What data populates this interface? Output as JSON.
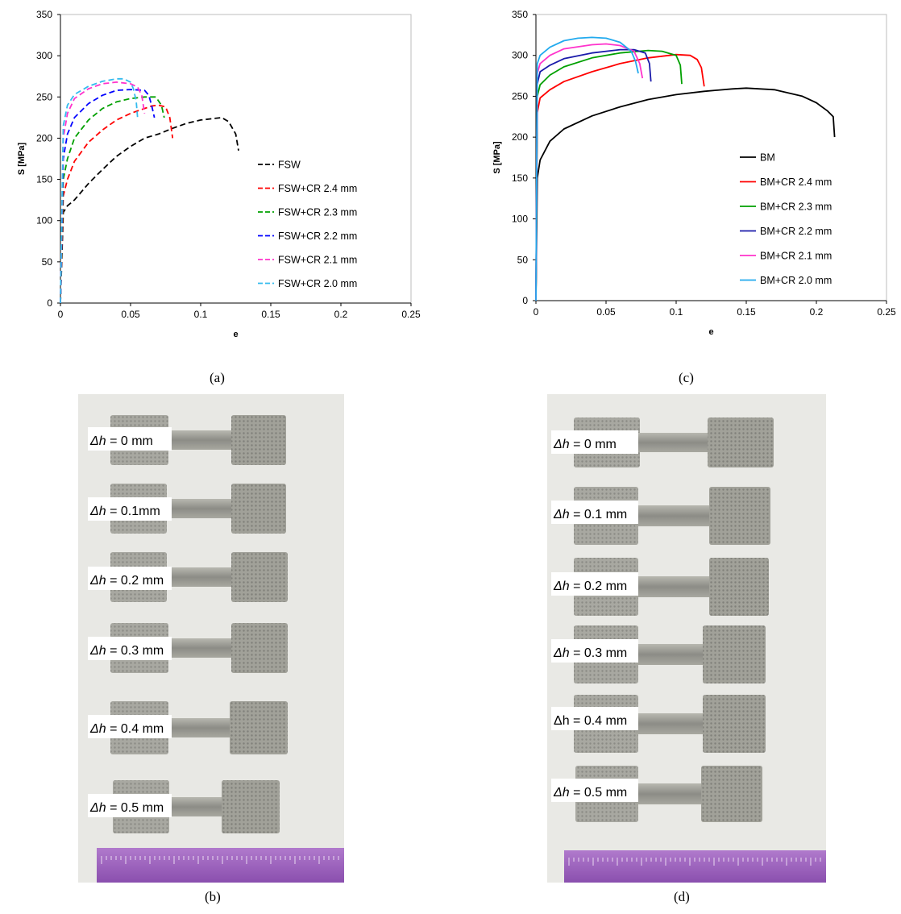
{
  "captions": {
    "a": "(a)",
    "b": "(b)",
    "c": "(c)",
    "d": "(d)"
  },
  "chart_data": [
    {
      "type": "line",
      "panel": "a",
      "xlabel": "e",
      "ylabel": "S [MPa]",
      "xlim": [
        0,
        0.25
      ],
      "ylim": [
        0,
        350
      ],
      "xticks": [
        "0",
        "0.05",
        "0.1",
        "0.15",
        "0.2",
        "0.25"
      ],
      "yticks": [
        "0",
        "50",
        "100",
        "150",
        "200",
        "250",
        "300",
        "350"
      ],
      "line_style": "dashed",
      "legend_position": "right",
      "series": [
        {
          "name": "FSW",
          "color": "#000000",
          "x": [
            0,
            0.002,
            0.005,
            0.01,
            0.02,
            0.03,
            0.04,
            0.05,
            0.06,
            0.07,
            0.08,
            0.09,
            0.1,
            0.11,
            0.115,
            0.12,
            0.125,
            0.127
          ],
          "y": [
            0,
            110,
            118,
            125,
            145,
            162,
            178,
            190,
            200,
            205,
            212,
            218,
            222,
            224,
            225,
            220,
            205,
            185
          ]
        },
        {
          "name": "FSW+CR 2.4 mm",
          "color": "#ff0000",
          "x": [
            0,
            0.002,
            0.005,
            0.01,
            0.02,
            0.03,
            0.04,
            0.05,
            0.06,
            0.065,
            0.07,
            0.075,
            0.078,
            0.08
          ],
          "y": [
            0,
            130,
            150,
            172,
            195,
            210,
            222,
            230,
            236,
            239,
            240,
            238,
            225,
            200
          ]
        },
        {
          "name": "FSW+CR 2.3 mm",
          "color": "#00a000",
          "x": [
            0,
            0.002,
            0.005,
            0.01,
            0.02,
            0.03,
            0.04,
            0.05,
            0.06,
            0.068,
            0.072,
            0.074
          ],
          "y": [
            0,
            150,
            175,
            200,
            222,
            236,
            244,
            248,
            250,
            250,
            240,
            225
          ]
        },
        {
          "name": "FSW+CR 2.2 mm",
          "color": "#0000ff",
          "x": [
            0,
            0.002,
            0.005,
            0.01,
            0.02,
            0.03,
            0.04,
            0.05,
            0.06,
            0.063,
            0.065,
            0.067
          ],
          "y": [
            0,
            175,
            205,
            225,
            242,
            252,
            258,
            259,
            258,
            252,
            240,
            225
          ]
        },
        {
          "name": "FSW+CR 2.1 mm",
          "color": "#ff33cc",
          "x": [
            0,
            0.002,
            0.005,
            0.01,
            0.02,
            0.03,
            0.04,
            0.05,
            0.055,
            0.058,
            0.06
          ],
          "y": [
            0,
            200,
            230,
            248,
            260,
            266,
            268,
            266,
            262,
            252,
            230
          ]
        },
        {
          "name": "FSW+CR 2.0 mm",
          "color": "#33bbee",
          "x": [
            0,
            0.002,
            0.005,
            0.01,
            0.02,
            0.03,
            0.04,
            0.045,
            0.05,
            0.052,
            0.054,
            0.055
          ],
          "y": [
            0,
            215,
            240,
            253,
            263,
            269,
            272,
            272,
            268,
            260,
            245,
            225
          ]
        }
      ]
    },
    {
      "type": "line",
      "panel": "c",
      "xlabel": "e",
      "ylabel": "S [MPa]",
      "xlim": [
        0,
        0.25
      ],
      "ylim": [
        0,
        350
      ],
      "xticks": [
        "0",
        "0.05",
        "0.1",
        "0.15",
        "0.2",
        "0.25"
      ],
      "yticks": [
        "0",
        "50",
        "100",
        "150",
        "200",
        "250",
        "300",
        "350"
      ],
      "line_style": "solid",
      "legend_position": "right",
      "series": [
        {
          "name": "BM",
          "color": "#000000",
          "x": [
            0,
            0.001,
            0.003,
            0.01,
            0.02,
            0.04,
            0.06,
            0.08,
            0.1,
            0.12,
            0.14,
            0.15,
            0.17,
            0.19,
            0.2,
            0.208,
            0.212,
            0.213
          ],
          "y": [
            0,
            150,
            172,
            195,
            210,
            226,
            237,
            246,
            252,
            256,
            259,
            260,
            258,
            250,
            242,
            232,
            225,
            200
          ]
        },
        {
          "name": "BM+CR 2.4 mm",
          "color": "#ff0000",
          "x": [
            0,
            0.001,
            0.003,
            0.01,
            0.02,
            0.04,
            0.06,
            0.08,
            0.1,
            0.11,
            0.115,
            0.118,
            0.12
          ],
          "y": [
            0,
            230,
            248,
            258,
            268,
            280,
            290,
            297,
            301,
            300,
            295,
            285,
            262
          ]
        },
        {
          "name": "BM+CR 2.3 mm",
          "color": "#00a000",
          "x": [
            0,
            0.001,
            0.003,
            0.01,
            0.02,
            0.04,
            0.06,
            0.08,
            0.09,
            0.1,
            0.103,
            0.104
          ],
          "y": [
            0,
            250,
            264,
            276,
            286,
            297,
            303,
            306,
            305,
            300,
            288,
            265
          ]
        },
        {
          "name": "BM+CR 2.2 mm",
          "color": "#1a1aaa",
          "x": [
            0,
            0.001,
            0.003,
            0.01,
            0.02,
            0.04,
            0.06,
            0.07,
            0.078,
            0.081,
            0.082
          ],
          "y": [
            0,
            265,
            280,
            288,
            296,
            303,
            307,
            307,
            303,
            290,
            268
          ]
        },
        {
          "name": "BM+CR 2.1 mm",
          "color": "#ff33cc",
          "x": [
            0,
            0.001,
            0.003,
            0.01,
            0.02,
            0.04,
            0.05,
            0.06,
            0.07,
            0.074,
            0.076
          ],
          "y": [
            0,
            278,
            290,
            300,
            308,
            313,
            314,
            312,
            305,
            290,
            272
          ]
        },
        {
          "name": "BM+CR 2.0 mm",
          "color": "#22aaee",
          "x": [
            0,
            0.001,
            0.003,
            0.01,
            0.02,
            0.03,
            0.04,
            0.05,
            0.06,
            0.068,
            0.071,
            0.073
          ],
          "y": [
            0,
            290,
            300,
            310,
            318,
            321,
            322,
            321,
            316,
            305,
            293,
            278
          ]
        }
      ]
    }
  ],
  "photo_b": {
    "labels": [
      {
        "symbol": "Δh",
        "value": " = 0 mm"
      },
      {
        "symbol": "Δh",
        "value": " = 0.1mm"
      },
      {
        "symbol": "Δh",
        "value": " = 0.2 mm"
      },
      {
        "symbol": "Δh",
        "value": " = 0.3 mm"
      },
      {
        "symbol": "Δh",
        "value": " = 0.4 mm"
      },
      {
        "symbol": "Δh",
        "value": " = 0.5 mm"
      }
    ]
  },
  "photo_d": {
    "labels": [
      {
        "symbol": "Δh",
        "value": " = 0 mm",
        "italic": true
      },
      {
        "symbol": "Δh",
        "value": " = 0.1 mm",
        "italic": true
      },
      {
        "symbol": "Δh",
        "value": " = 0.2 mm",
        "italic": true
      },
      {
        "symbol": "Δh",
        "value": " = 0.3 mm",
        "italic": true
      },
      {
        "symbol": "Δh",
        "value": " = 0.4 mm",
        "italic": false
      },
      {
        "symbol": "Δh",
        "value": " = 0.5 mm",
        "italic": true
      }
    ]
  }
}
